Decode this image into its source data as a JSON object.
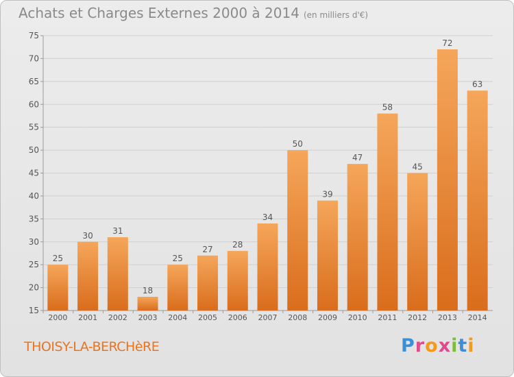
{
  "header": {
    "title": "Achats et Charges Externes 2000 à 2014",
    "subtitle": "(en milliers d'€)"
  },
  "footer": {
    "commune": "THOISY-LA-BERCHèRE",
    "logo_letters": [
      "P",
      "r",
      "o",
      "x",
      "i",
      "t",
      "i"
    ]
  },
  "colors": {
    "bar_top": "#f5a65a",
    "bar_bottom": "#d96d1c",
    "grid": "#cfcfcf",
    "axis_text": "#555555",
    "commune_text": "#e8741f"
  },
  "chart_data": {
    "type": "bar",
    "title": "Achats et Charges Externes 2000 à 2014",
    "subtitle": "(en milliers d'€)",
    "xlabel": "",
    "ylabel": "",
    "categories": [
      "2000",
      "2001",
      "2002",
      "2003",
      "2004",
      "2005",
      "2006",
      "2007",
      "2008",
      "2009",
      "2010",
      "2011",
      "2012",
      "2013",
      "2014"
    ],
    "values": [
      25,
      30,
      31,
      18,
      25,
      27,
      28,
      34,
      50,
      39,
      47,
      58,
      45,
      72,
      63
    ],
    "ylim": [
      15,
      75
    ],
    "yticks": [
      15,
      20,
      25,
      30,
      35,
      40,
      45,
      50,
      55,
      60,
      65,
      70,
      75
    ],
    "grid": true,
    "legend": "none",
    "data_labels": true
  }
}
